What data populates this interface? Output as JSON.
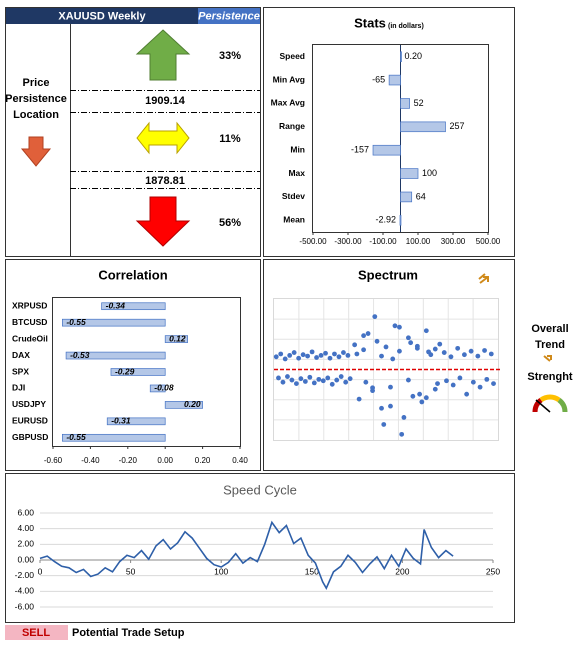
{
  "persistence": {
    "symbol": "XAUUSD Weekly",
    "header": "Persistence",
    "location_label": [
      "Price",
      "Persistence",
      "Location"
    ],
    "up": "33%",
    "upper_level": "1909.14",
    "middle": "11%",
    "lower_level": "1878.81",
    "down": "56%"
  },
  "trend": {
    "label": [
      "Overall",
      "Trend",
      "Strenght"
    ]
  },
  "footer": {
    "signal": "SELL",
    "caption": "Potential Trade Setup"
  },
  "chart_data": [
    {
      "type": "bar",
      "orientation": "horizontal",
      "title": "Stats",
      "subtitle": "(in dollars)",
      "categories": [
        "Speed",
        "Min Avg",
        "Max Avg",
        "Range",
        "Min",
        "Max",
        "Stdev",
        "Mean"
      ],
      "values": [
        0.2,
        -65,
        52,
        257,
        -157,
        100,
        64,
        -2.92
      ],
      "value_labels": [
        "0.20",
        "-65",
        "52",
        "257",
        "-157",
        "100",
        "64",
        "-2.92"
      ],
      "color": "#b4c7e7",
      "xlim": [
        -500,
        500
      ],
      "xticks": [
        {
          "value": -500,
          "label": "-500.00"
        },
        {
          "value": -300,
          "label": "-300.00"
        },
        {
          "value": -100,
          "label": "-100.00"
        },
        {
          "value": 100,
          "label": "100.00"
        },
        {
          "value": 300,
          "label": "300.00"
        },
        {
          "value": 500,
          "label": "500.00"
        }
      ]
    },
    {
      "type": "bar",
      "orientation": "horizontal",
      "title": "Correlation",
      "categories": [
        "XRPUSD",
        "BTCUSD",
        "CrudeOil",
        "DAX",
        "SPX",
        "DJI",
        "USDJPY",
        "EURUSD",
        "GBPUSD"
      ],
      "values": [
        -0.34,
        -0.55,
        0.12,
        -0.53,
        -0.29,
        -0.08,
        0.2,
        -0.31,
        -0.55
      ],
      "value_labels": [
        "-0.34",
        "-0.55",
        "0.12",
        "-0.53",
        "-0.29",
        "-0.08",
        "0.20",
        "-0.31",
        "-0.55"
      ],
      "color": "#b4c7e7",
      "xlim": [
        -0.6,
        0.4
      ],
      "xticks": [
        {
          "value": -0.6,
          "label": "-0.60"
        },
        {
          "value": -0.4,
          "label": "-0.40"
        },
        {
          "value": -0.2,
          "label": "-0.20"
        },
        {
          "value": 0,
          "label": "0.00"
        },
        {
          "value": 0.2,
          "label": "0.20"
        },
        {
          "value": 0.4,
          "label": "0.40"
        }
      ]
    },
    {
      "type": "scatter",
      "title": "Spectrum",
      "color": "#4472c4",
      "hline": 0,
      "hline_color": "#e00000",
      "xlim": [
        0,
        100
      ],
      "ylim": [
        -10,
        10
      ],
      "grid": true,
      "x": [
        1,
        3,
        5,
        7,
        9,
        11,
        13,
        15,
        17,
        19,
        21,
        23,
        25,
        27,
        29,
        31,
        33,
        2,
        4,
        6,
        8,
        10,
        12,
        14,
        16,
        18,
        20,
        22,
        24,
        26,
        28,
        30,
        32,
        34,
        36,
        38,
        40,
        42,
        44,
        46,
        48,
        50,
        52,
        54,
        56,
        58,
        60,
        62,
        64,
        66,
        68,
        70,
        72,
        74,
        37,
        41,
        45,
        49,
        53,
        57,
        61,
        65,
        69,
        73,
        40,
        44,
        48,
        52,
        56,
        60,
        64,
        68,
        72,
        76,
        79,
        82,
        85,
        88,
        91,
        94,
        97,
        77,
        80,
        83,
        86,
        89,
        92,
        95,
        98
      ],
      "values": [
        1.8,
        2.2,
        1.5,
        2.0,
        2.4,
        1.6,
        2.1,
        1.9,
        2.5,
        1.7,
        2.0,
        2.3,
        1.6,
        2.2,
        1.8,
        2.4,
        2.0,
        -1.2,
        -1.8,
        -1.0,
        -1.5,
        -2.0,
        -1.3,
        -1.7,
        -1.1,
        -1.9,
        -1.4,
        -1.6,
        -1.2,
        -2.1,
        -1.5,
        -1.0,
        -1.8,
        -1.3,
        3.5,
        -4.2,
        2.8,
        5.1,
        -3.0,
        4.0,
        -5.5,
        3.2,
        -2.5,
        6.2,
        2.6,
        -6.8,
        4.5,
        -3.8,
        3.0,
        -4.6,
        5.5,
        2.1,
        -2.8,
        3.6,
        2.2,
        -1.8,
        7.5,
        -7.8,
        1.5,
        -9.2,
        3.8,
        -3.5,
        2.5,
        -2.0,
        4.8,
        -2.6,
        1.9,
        -5.2,
        6.0,
        -1.5,
        3.3,
        -4.0,
        2.9,
        2.4,
        1.8,
        3.0,
        2.1,
        2.6,
        1.9,
        2.7,
        2.2,
        -1.6,
        -2.2,
        -1.2,
        -3.5,
        -1.8,
        -2.5,
        -1.4,
        -2.0
      ]
    },
    {
      "type": "line",
      "title": "Speed Cycle",
      "color": "#2e5fa8",
      "grid": true,
      "xlim": [
        0,
        250
      ],
      "xticks": [
        0,
        50,
        100,
        150,
        200,
        250
      ],
      "ylim": [
        -6,
        6
      ],
      "yticks": [
        {
          "value": 6,
          "label": "6.00"
        },
        {
          "value": 4,
          "label": "4.00"
        },
        {
          "value": 2,
          "label": "2.00"
        },
        {
          "value": 0,
          "label": "0.00"
        },
        {
          "value": -2,
          "label": "-2.00"
        },
        {
          "value": -4,
          "label": "-4.00"
        },
        {
          "value": -6,
          "label": "-6.00"
        }
      ],
      "x": [
        0,
        4,
        8,
        12,
        16,
        20,
        24,
        28,
        32,
        36,
        40,
        44,
        48,
        52,
        56,
        60,
        64,
        68,
        72,
        76,
        80,
        84,
        88,
        92,
        96,
        100,
        104,
        108,
        112,
        116,
        120,
        124,
        128,
        132,
        136,
        140,
        144,
        148,
        152,
        156,
        158,
        162,
        166,
        170,
        174,
        178,
        182,
        186,
        190,
        194,
        198,
        202,
        206,
        210,
        212,
        216,
        220,
        224,
        228
      ],
      "values": [
        0.2,
        0.5,
        -0.2,
        -0.8,
        -1.0,
        -1.6,
        -1.2,
        -2.1,
        -1.8,
        -1.0,
        -1.5,
        -0.2,
        0.6,
        0.3,
        1.2,
        0.1,
        1.8,
        2.6,
        1.4,
        2.2,
        3.6,
        2.8,
        1.5,
        0.2,
        -0.6,
        -0.9,
        -0.3,
        0.8,
        -0.4,
        0.3,
        -0.2,
        2.0,
        4.8,
        3.5,
        4.4,
        2.1,
        2.8,
        0.6,
        -0.4,
        -2.8,
        -3.6,
        -1.5,
        -0.8,
        0.6,
        -0.3,
        -1.6,
        -0.5,
        0.4,
        -1.1,
        0.6,
        -0.8,
        1.4,
        0.2,
        -0.5,
        3.9,
        1.6,
        0.3,
        1.2,
        0.5
      ]
    }
  ]
}
